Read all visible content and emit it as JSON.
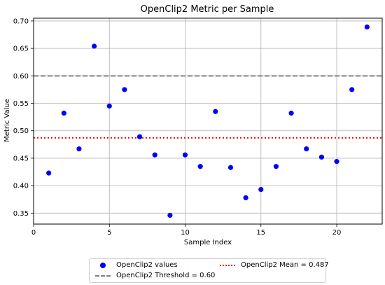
{
  "chart_data": {
    "type": "scatter",
    "title": "OpenClip2 Metric per Sample",
    "xlabel": "Sample Index",
    "ylabel": "Metric Value",
    "xlim": [
      0,
      23
    ],
    "ylim": [
      0.33,
      0.705
    ],
    "xticks": [
      0,
      5,
      10,
      15,
      20
    ],
    "yticks": [
      0.35,
      0.4,
      0.45,
      0.5,
      0.55,
      0.6,
      0.65,
      0.7
    ],
    "grid": true,
    "legend_position": "bottom-center (outside)",
    "series": [
      {
        "name": "OpenClip2 values",
        "kind": "scatter",
        "color": "#0000ff",
        "x": [
          1,
          2,
          3,
          4,
          5,
          6,
          7,
          8,
          9,
          10,
          11,
          12,
          13,
          14,
          15,
          16,
          17,
          18,
          19,
          20,
          21,
          22
        ],
        "y": [
          0.423,
          0.532,
          0.467,
          0.654,
          0.545,
          0.575,
          0.489,
          0.456,
          0.346,
          0.456,
          0.435,
          0.535,
          0.433,
          0.378,
          0.393,
          0.435,
          0.532,
          0.467,
          0.452,
          0.444,
          0.575,
          0.689
        ]
      }
    ],
    "reference_lines": [
      {
        "name": "OpenClip2 Threshold = 0.60",
        "y": 0.6,
        "style": "dashed",
        "color": "#808080"
      },
      {
        "name": "OpenClip2 Mean = 0.487",
        "y": 0.487,
        "style": "dotted",
        "color": "#ff0000"
      }
    ]
  },
  "legend": {
    "items": [
      "OpenClip2 values",
      "OpenClip2 Mean = 0.487",
      "OpenClip2 Threshold = 0.60"
    ]
  }
}
